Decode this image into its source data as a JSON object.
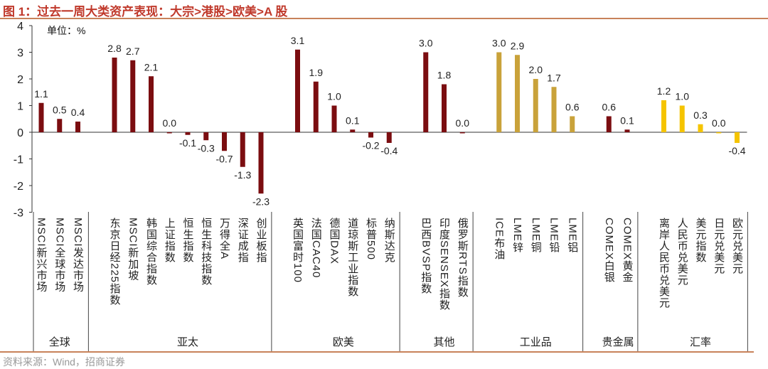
{
  "title": "图 1：过去一周大类资产表现：大宗>港股>欧美>A 股",
  "source": "资料来源：Wind，招商证券",
  "chart_data": {
    "type": "bar",
    "unit_label": "单位：%",
    "ylim": [
      -3,
      4
    ],
    "yticks": [
      -3,
      -2,
      -1,
      0,
      1,
      2,
      3,
      4
    ],
    "groups": [
      {
        "name": "全球",
        "color": "#7B0D10",
        "categories": [
          "MSCI新兴市场",
          "MSCI全球市场",
          "MSCI发达市场"
        ],
        "values": [
          1.1,
          0.5,
          0.4
        ]
      },
      {
        "name": "亚太",
        "color": "#7B0D10",
        "categories": [
          "东京日经225指数",
          "MSCI新加坡",
          "韩国综合指数",
          "上证指数",
          "恒生指数",
          "恒生科技指数",
          "万得全A",
          "深证成指",
          "创业板指"
        ],
        "values": [
          2.8,
          2.7,
          2.1,
          0.0,
          -0.1,
          -0.3,
          -0.7,
          -1.3,
          -2.3
        ]
      },
      {
        "name": "欧美",
        "color": "#7B0D10",
        "categories": [
          "英国富时100",
          "法国CAC40",
          "德国DAX",
          "道琼斯工业指数",
          "标普500",
          "纳斯达克"
        ],
        "values": [
          3.1,
          1.9,
          1.0,
          0.1,
          -0.2,
          -0.4
        ]
      },
      {
        "name": "其他",
        "color": "#7B0D10",
        "categories": [
          "巴西BVSP指数",
          "印度SENSEX指数",
          "俄罗斯RTS指数"
        ],
        "values": [
          3.0,
          1.8,
          0.0
        ]
      },
      {
        "name": "工业品",
        "color": "#C9A23A",
        "categories": [
          "ICE布油",
          "LME锌",
          "LME铜",
          "LME铅",
          "LME铝"
        ],
        "values": [
          3.0,
          2.9,
          2.0,
          1.7,
          0.6
        ]
      },
      {
        "name": "贵金属",
        "color": "#7B0D10",
        "categories": [
          "COMEX白银",
          "COMEX黄金"
        ],
        "values": [
          0.6,
          0.1
        ]
      },
      {
        "name": "汇率",
        "color": "#F5C400",
        "categories": [
          "离岸人民币兑美元",
          "人民币兑美元",
          "美元指数",
          "日元兑美元",
          "欧元兑美元"
        ],
        "values": [
          1.2,
          1.0,
          0.3,
          0.0,
          -0.4
        ]
      }
    ]
  }
}
